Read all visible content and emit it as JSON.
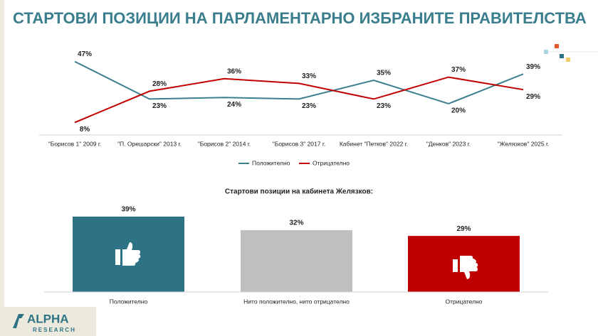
{
  "title": "СТАРТОВИ ПОЗИЦИИ НА ПАРЛАМЕНТАРНО ИЗБРАНИТЕ ПРАВИТЕЛСТВА",
  "logo": {
    "name": "ALPHA",
    "subtitle": "RESEARCH"
  },
  "chart_data": [
    {
      "type": "line",
      "categories": [
        "\"Борисов 1\" 2009 г.",
        "\"П. Орешарски\" 2013 г.",
        "\"Борисов 2\" 2014 г.",
        "\"Борисов 3\" 2017 г.",
        "Кабинет \"Петков\" 2022 г.",
        "\"Денков\" 2023 г.",
        "\"Желязков\" 2025 г."
      ],
      "series": [
        {
          "name": "Положително",
          "color": "#3c7f8f",
          "values": [
            47,
            23,
            24,
            23,
            35,
            20,
            39
          ],
          "value_labels": [
            "47%",
            "23%",
            "24%",
            "23%",
            "35%",
            "20%",
            "39%"
          ]
        },
        {
          "name": "Отрицателно",
          "color": "#c00000",
          "values": [
            8,
            28,
            36,
            33,
            23,
            37,
            29
          ],
          "value_labels": [
            "8%",
            "28%",
            "36%",
            "33%",
            "23%",
            "37%",
            "29%"
          ]
        }
      ]
    },
    {
      "type": "bar",
      "title": "Стартови позиции на кабинета Желязков:",
      "categories": [
        "Положително",
        "Нито положително, нито отрицателно",
        "Отрицателно"
      ],
      "values": [
        39,
        32,
        29
      ],
      "value_labels": [
        "39%",
        "32%",
        "29%"
      ],
      "colors": [
        "#2e7385",
        "#bfbfbf",
        "#c00000"
      ]
    }
  ]
}
